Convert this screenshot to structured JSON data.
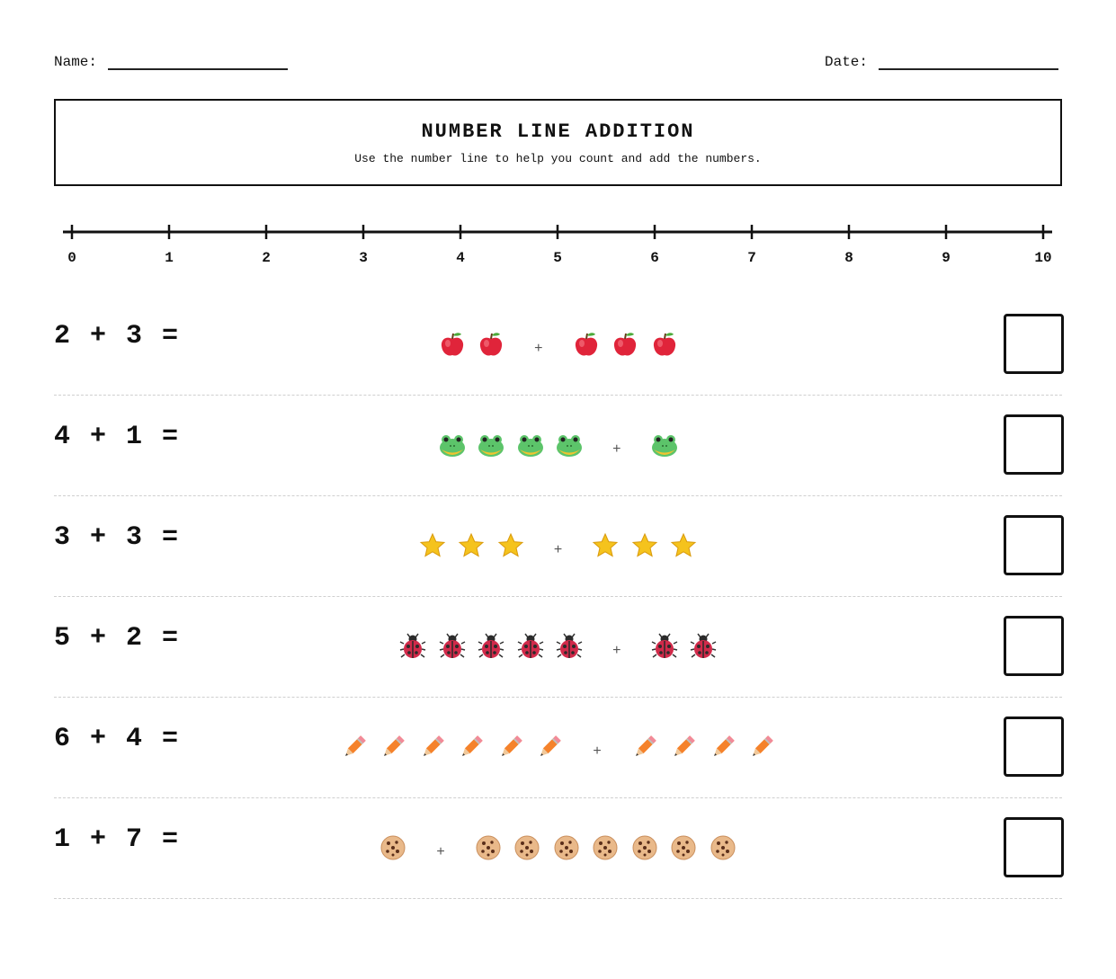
{
  "header": {
    "name_label": "Name:",
    "date_label": "Date:"
  },
  "title": "NUMBER LINE ADDITION",
  "subtitle": "Use the number line to help you count and add the numbers.",
  "number_line": {
    "ticks": [
      "0",
      "1",
      "2",
      "3",
      "4",
      "5",
      "6",
      "7",
      "8",
      "9",
      "10"
    ]
  },
  "problems": [
    {
      "equation": "2 + 3 =",
      "a": 2,
      "b": 3,
      "icon": "apple-icon"
    },
    {
      "equation": "4 + 1 =",
      "a": 4,
      "b": 1,
      "icon": "frog-icon"
    },
    {
      "equation": "3 + 3 =",
      "a": 3,
      "b": 3,
      "icon": "star-icon"
    },
    {
      "equation": "5 + 2 =",
      "a": 5,
      "b": 2,
      "icon": "ladybug-icon"
    },
    {
      "equation": "6 + 4 =",
      "a": 6,
      "b": 4,
      "icon": "pencil-icon"
    },
    {
      "equation": "1 + 7 =",
      "a": 1,
      "b": 7,
      "icon": "cookie-icon"
    }
  ],
  "plus_sign": "+"
}
